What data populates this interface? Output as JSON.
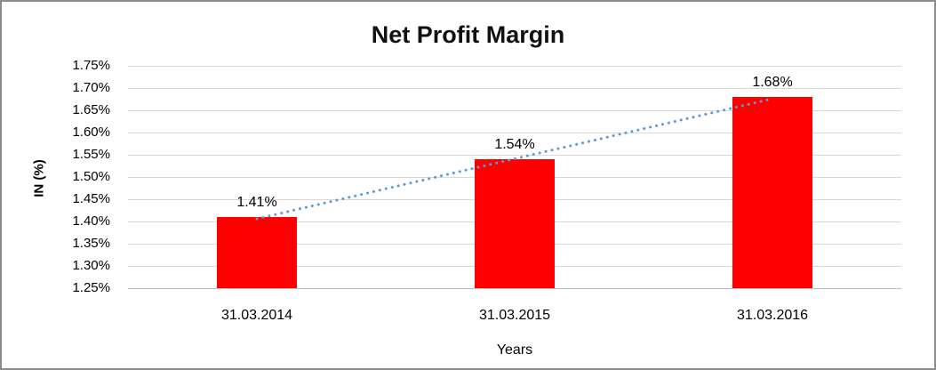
{
  "chart_data": {
    "type": "bar",
    "title": "Net Profit Margin",
    "xlabel": "Years",
    "ylabel": "IN (%)",
    "categories": [
      "31.03.2014",
      "31.03.2015",
      "31.03.2016"
    ],
    "values": [
      1.41,
      1.54,
      1.68
    ],
    "value_labels": [
      "1.41%",
      "1.54%",
      "1.68%"
    ],
    "ylim": [
      1.25,
      1.75
    ],
    "ytick_step": 0.05,
    "ytick_labels": [
      "1.75%",
      "1.70%",
      "1.65%",
      "1.60%",
      "1.55%",
      "1.50%",
      "1.45%",
      "1.40%",
      "1.35%",
      "1.30%",
      "1.25%"
    ],
    "grid": true,
    "legend": "none",
    "colors": {
      "bar": "#ff0000",
      "trendline": "#5b9bd5",
      "gridline": "#d9d9d9",
      "text": "#000000"
    },
    "trendline": {
      "style": "dotted",
      "from_category": "31.03.2014",
      "to_category": "31.03.2016"
    }
  }
}
